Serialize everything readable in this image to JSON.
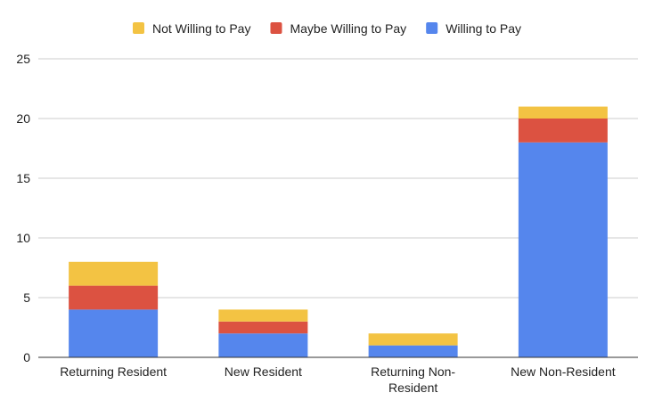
{
  "chart_data": {
    "type": "bar",
    "stacked": true,
    "title": "",
    "xlabel": "",
    "ylabel": "",
    "categories": [
      [
        "Returning Resident"
      ],
      [
        "New Resident"
      ],
      [
        "Returning Non-",
        "Resident"
      ],
      [
        "New Non-Resident"
      ]
    ],
    "series": [
      {
        "name": "Willing to Pay",
        "color": "#5586ed",
        "values": [
          4,
          2,
          1,
          18
        ]
      },
      {
        "name": "Maybe Willing to Pay",
        "color": "#dc5241",
        "values": [
          2,
          1,
          0,
          2
        ]
      },
      {
        "name": "Not Willing to Pay",
        "color": "#f3c343",
        "values": [
          2,
          1,
          1,
          1
        ]
      }
    ],
    "legend_order": [
      "Not Willing to Pay",
      "Maybe Willing to Pay",
      "Willing to Pay"
    ],
    "legend_position": "top-center",
    "ylim": [
      0,
      25
    ],
    "yticks": [
      0,
      5,
      10,
      15,
      20,
      25
    ],
    "grid": true
  }
}
